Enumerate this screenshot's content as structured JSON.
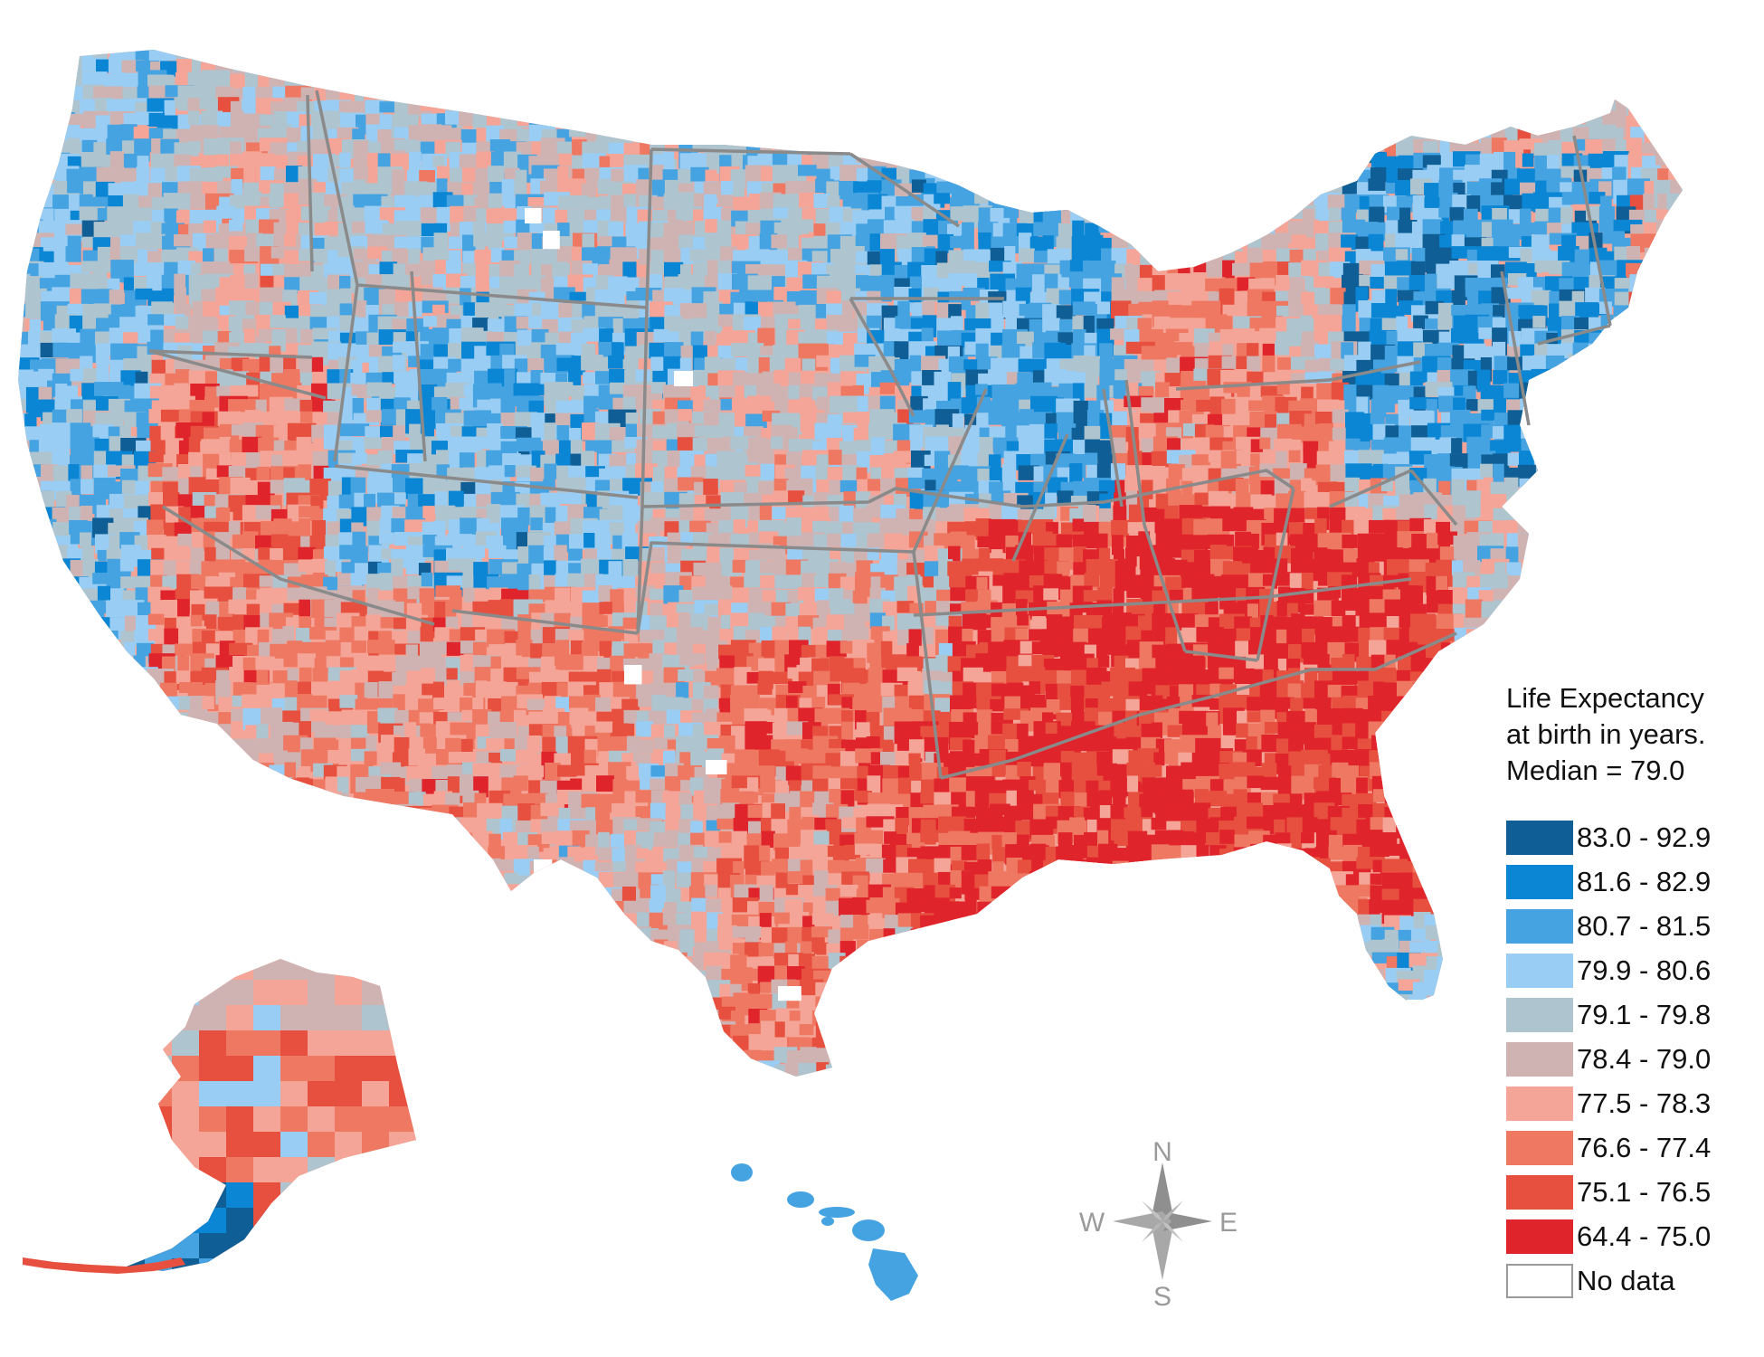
{
  "legend": {
    "title_line1": "Life Expectancy",
    "title_line2": "at birth in years.",
    "title_line3": "Median = 79.0",
    "classes": [
      {
        "range": "83.0 - 92.9",
        "color": "#0f5f96"
      },
      {
        "range": "81.6 - 82.9",
        "color": "#0a86d4"
      },
      {
        "range": "80.7 - 81.5",
        "color": "#45a3e2"
      },
      {
        "range": "79.9 - 80.6",
        "color": "#9acdf3"
      },
      {
        "range": "79.1 - 79.8",
        "color": "#aec4cf"
      },
      {
        "range": "78.4 - 79.0",
        "color": "#cfb3b3"
      },
      {
        "range": "77.5 - 78.3",
        "color": "#f4a597"
      },
      {
        "range": "76.6 - 77.4",
        "color": "#ee7862"
      },
      {
        "range": "75.1 - 76.5",
        "color": "#e7503f"
      },
      {
        "range": "64.4 - 75.0",
        "color": "#e0242b"
      }
    ],
    "no_data": {
      "label": "No data",
      "color": "#ffffff"
    }
  },
  "compass": {
    "north": "N",
    "south": "S",
    "east": "E",
    "west": "W"
  }
}
